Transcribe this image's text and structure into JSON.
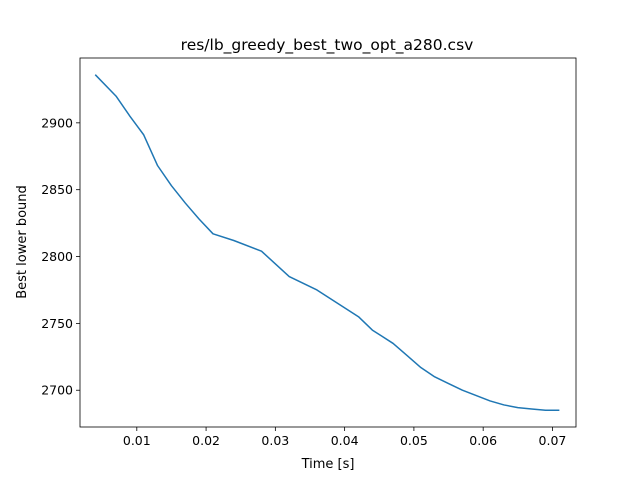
{
  "chart_data": {
    "type": "line",
    "title": "res/lb_greedy_best_two_opt_a280.csv",
    "xlabel": "Time [s]",
    "ylabel": "Best lower bound",
    "xlim": [
      0.0018,
      0.0734
    ],
    "ylim": [
      2672.5,
      2948.5
    ],
    "xticks": [
      0.01,
      0.02,
      0.03,
      0.04,
      0.05,
      0.06,
      0.07
    ],
    "xtick_labels": [
      "0.01",
      "0.02",
      "0.03",
      "0.04",
      "0.05",
      "0.06",
      "0.07"
    ],
    "yticks": [
      2700,
      2750,
      2800,
      2850,
      2900
    ],
    "ytick_labels": [
      "2700",
      "2750",
      "2800",
      "2850",
      "2900"
    ],
    "grid": false,
    "colors": {
      "line": "#1f77b4"
    },
    "series": [
      {
        "x": [
          0.004,
          0.007,
          0.009,
          0.011,
          0.013,
          0.015,
          0.017,
          0.019,
          0.021,
          0.024,
          0.028,
          0.032,
          0.036,
          0.039,
          0.042,
          0.044,
          0.047,
          0.049,
          0.051,
          0.053,
          0.055,
          0.057,
          0.059,
          0.061,
          0.063,
          0.065,
          0.067,
          0.069,
          0.071
        ],
        "y": [
          2936,
          2920,
          2905,
          2891,
          2868,
          2853,
          2840,
          2828,
          2817,
          2812,
          2804,
          2785,
          2775,
          2765,
          2755,
          2745,
          2735,
          2726,
          2717,
          2710,
          2705,
          2700,
          2696,
          2692,
          2689,
          2687,
          2686,
          2685,
          2685
        ]
      }
    ]
  }
}
